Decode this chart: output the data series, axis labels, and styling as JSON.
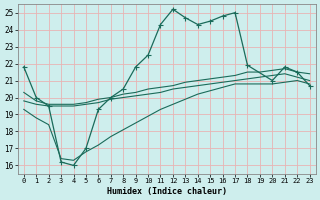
{
  "xlabel": "Humidex (Indice chaleur)",
  "ylabel": "",
  "xlim": [
    -0.5,
    23.5
  ],
  "ylim": [
    15.5,
    25.5
  ],
  "xticks": [
    0,
    1,
    2,
    3,
    4,
    5,
    6,
    7,
    8,
    9,
    10,
    11,
    12,
    13,
    14,
    15,
    16,
    17,
    18,
    19,
    20,
    21,
    22,
    23
  ],
  "yticks": [
    16,
    17,
    18,
    19,
    20,
    21,
    22,
    23,
    24,
    25
  ],
  "background_color": "#ceeeed",
  "grid_color": "#e8b4b4",
  "line_color": "#1a6b5a",
  "line1_x": [
    0,
    1,
    2,
    3,
    4,
    5,
    6,
    7,
    8,
    9,
    10,
    11,
    12,
    13,
    14,
    15,
    16,
    17,
    18,
    20,
    21,
    22,
    23
  ],
  "line1_y": [
    21.8,
    20.0,
    19.5,
    16.2,
    16.0,
    17.0,
    19.3,
    20.0,
    20.5,
    21.8,
    22.5,
    24.3,
    25.2,
    24.7,
    24.3,
    24.5,
    24.8,
    25.0,
    21.9,
    21.0,
    21.8,
    21.5,
    20.7
  ],
  "line2_x": [
    0,
    1,
    2,
    3,
    4,
    5,
    6,
    7,
    8,
    9,
    10,
    11,
    12,
    13,
    14,
    15,
    16,
    17,
    18,
    19,
    20,
    21,
    22,
    23
  ],
  "line2_y": [
    20.3,
    19.8,
    19.6,
    19.6,
    19.6,
    19.7,
    19.9,
    20.0,
    20.2,
    20.3,
    20.5,
    20.6,
    20.7,
    20.9,
    21.0,
    21.1,
    21.2,
    21.3,
    21.5,
    21.5,
    21.6,
    21.7,
    21.5,
    21.4
  ],
  "line3_x": [
    0,
    1,
    2,
    3,
    4,
    5,
    6,
    7,
    8,
    9,
    10,
    11,
    12,
    13,
    14,
    15,
    16,
    17,
    18,
    19,
    20,
    21,
    22,
    23
  ],
  "line3_y": [
    19.8,
    19.6,
    19.5,
    19.5,
    19.5,
    19.6,
    19.7,
    19.9,
    20.0,
    20.1,
    20.2,
    20.3,
    20.5,
    20.6,
    20.7,
    20.8,
    20.9,
    21.0,
    21.1,
    21.2,
    21.3,
    21.4,
    21.2,
    21.0
  ],
  "line4_x": [
    0,
    1,
    2,
    3,
    4,
    5,
    6,
    7,
    8,
    9,
    10,
    11,
    12,
    13,
    14,
    15,
    16,
    17,
    18,
    19,
    20,
    21,
    22,
    23
  ],
  "line4_y": [
    19.3,
    18.8,
    18.4,
    16.4,
    16.3,
    16.8,
    17.2,
    17.7,
    18.1,
    18.5,
    18.9,
    19.3,
    19.6,
    19.9,
    20.2,
    20.4,
    20.6,
    20.8,
    20.8,
    20.8,
    20.8,
    20.9,
    21.0,
    20.8
  ]
}
